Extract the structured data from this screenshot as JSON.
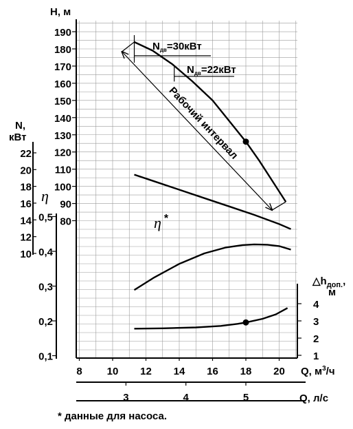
{
  "chart_data": {
    "type": "line",
    "title": "",
    "x_axis": {
      "label": "Q, м³/ч",
      "label_main": "Q, м",
      "label_sup": "3",
      "label_tail": "/ч",
      "range": [
        8,
        21.5
      ],
      "ticks": [
        "8",
        "10",
        "12",
        "14",
        "16",
        "18",
        "20"
      ]
    },
    "x_axis_secondary": {
      "label": "Q, л/с",
      "ticks": [
        "3",
        "4",
        "5"
      ]
    },
    "head_axis": {
      "label": "H, м",
      "range": [
        80,
        190
      ],
      "ticks": [
        "80",
        "90",
        "100",
        "110",
        "120",
        "130",
        "140",
        "150",
        "160",
        "170",
        "180",
        "190"
      ]
    },
    "power_axis": {
      "label_line1": "N,",
      "label_line2": "кВт",
      "range": [
        10,
        22
      ],
      "ticks": [
        "10",
        "12",
        "14",
        "16",
        "18",
        "20",
        "22"
      ]
    },
    "efficiency_axis": {
      "label": "η",
      "range": [
        0.1,
        0.5
      ],
      "ticks": [
        "0,1",
        "0,2",
        "0,3",
        "0,4",
        "0,5"
      ]
    },
    "npsh_axis": {
      "label_main": "△h",
      "label_sub": "доп.",
      "label_tail": ",",
      "label_line2": "м",
      "range": [
        1,
        4
      ],
      "ticks": [
        "1",
        "2",
        "3",
        "4"
      ]
    },
    "series": [
      {
        "key": "head",
        "axis": "head",
        "x": [
          11.3,
          12.4,
          13.6,
          14.8,
          16.0,
          17.0,
          18.0,
          18.8,
          19.6,
          20.4
        ],
        "y": [
          184,
          179,
          171,
          161,
          150,
          138,
          126,
          115,
          103,
          91
        ]
      },
      {
        "key": "power",
        "axis": "power",
        "x": [
          11.3,
          12.5,
          14.0,
          15.5,
          17.0,
          18.5,
          20.0,
          20.7
        ],
        "y": [
          19.4,
          18.6,
          17.6,
          16.6,
          15.6,
          14.6,
          13.5,
          12.9
        ]
      },
      {
        "key": "efficiency",
        "axis": "efficiency",
        "x": [
          11.3,
          12.5,
          14.0,
          15.5,
          16.8,
          17.8,
          18.5,
          19.3,
          20.0,
          20.7
        ],
        "y": [
          0.289,
          0.325,
          0.364,
          0.394,
          0.411,
          0.418,
          0.42,
          0.419,
          0.415,
          0.405
        ]
      },
      {
        "key": "npsh",
        "axis": "npsh",
        "x": [
          11.3,
          13.0,
          15.0,
          16.5,
          17.5,
          18.0,
          19.0,
          19.8,
          20.5
        ],
        "y": [
          2.55,
          2.57,
          2.62,
          2.71,
          2.83,
          2.91,
          3.12,
          3.38,
          3.75
        ]
      }
    ],
    "marked_points": [
      {
        "series": "head",
        "x": 18.0,
        "y": 126
      },
      {
        "series": "npsh",
        "x": 18.0,
        "y": 2.91
      }
    ],
    "annotations": {
      "n30_main": "N",
      "n30_sub": "дв",
      "n30_value": "=30кВт",
      "n22_main": "N",
      "n22_sub": "дв",
      "n22_value": "=22кВт",
      "working_range": "Рабочий интервал",
      "working_range_x": [
        11.3,
        20.4
      ],
      "eta_star": "η",
      "eta_star_mark": "*"
    },
    "grid": true
  },
  "footnote": "* данные для насоса."
}
